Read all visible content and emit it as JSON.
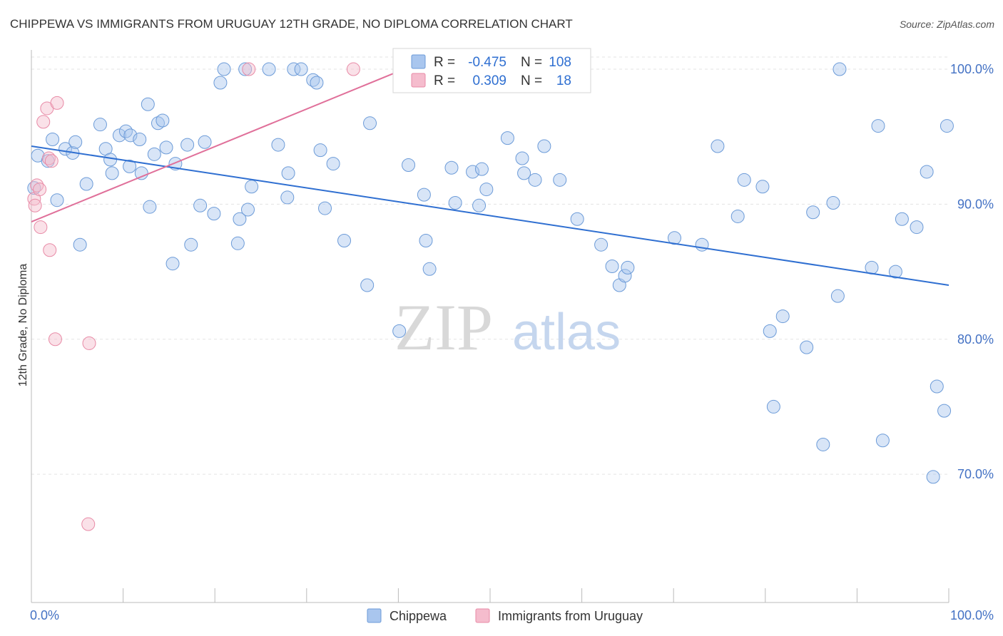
{
  "title": "CHIPPEWA VS IMMIGRANTS FROM URUGUAY 12TH GRADE, NO DIPLOMA CORRELATION CHART",
  "source": "Source: ZipAtlas.com",
  "watermark": {
    "zip": "ZIP",
    "atlas": "atlas"
  },
  "colors": {
    "blue_fill": "#a9c6ee",
    "blue_stroke": "#6c9bd8",
    "blue_line": "#2f6fd1",
    "pink_fill": "#f5bccd",
    "pink_stroke": "#e88aa6",
    "pink_line": "#e0709a",
    "grid": "#e3e3e3",
    "axis": "#bbbbbb",
    "tick_text": "#4472c4"
  },
  "legend": {
    "rows": [
      {
        "r_label": "R =",
        "r_value": "-0.475",
        "n_label": "N =",
        "n_value": "108"
      },
      {
        "r_label": "R =",
        "r_value": "0.309",
        "n_label": "N =",
        "n_value": "18"
      }
    ]
  },
  "bottom_legend": [
    "Chippewa",
    "Immigrants from Uruguay"
  ],
  "chart_data": {
    "type": "scatter",
    "title": "CHIPPEWA VS IMMIGRANTS FROM URUGUAY 12TH GRADE, NO DIPLOMA CORRELATION CHART",
    "xlabel": "",
    "ylabel": "12th Grade, No Diploma",
    "xlim": [
      0,
      100
    ],
    "ylim": [
      60.5,
      100.9
    ],
    "x_tick_labels": [
      "0.0%",
      "100.0%"
    ],
    "y_ticks": [
      70,
      80,
      90,
      100
    ],
    "y_tick_labels": [
      "70.0%",
      "80.0%",
      "90.0%",
      "100.0%"
    ],
    "grid": true,
    "legend_position": "top-center",
    "series": [
      {
        "name": "Chippewa",
        "color": "#a9c6ee",
        "trendline": {
          "x": [
            0,
            100
          ],
          "y": [
            94.3,
            84.0
          ]
        },
        "points": [
          [
            0.3,
            91.2
          ],
          [
            0.7,
            93.6
          ],
          [
            1.8,
            93.2
          ],
          [
            2.3,
            94.8
          ],
          [
            2.8,
            90.3
          ],
          [
            3.7,
            94.1
          ],
          [
            4.5,
            93.8
          ],
          [
            4.8,
            94.6
          ],
          [
            5.3,
            87.0
          ],
          [
            6.0,
            91.5
          ],
          [
            7.5,
            95.9
          ],
          [
            8.1,
            94.1
          ],
          [
            8.8,
            92.3
          ],
          [
            8.6,
            93.3
          ],
          [
            9.6,
            95.1
          ],
          [
            10.3,
            95.4
          ],
          [
            10.8,
            95.1
          ],
          [
            10.7,
            92.8
          ],
          [
            11.8,
            94.8
          ],
          [
            12.0,
            92.3
          ],
          [
            12.7,
            97.4
          ],
          [
            12.9,
            89.8
          ],
          [
            13.4,
            93.7
          ],
          [
            13.8,
            96.0
          ],
          [
            14.3,
            96.2
          ],
          [
            14.7,
            94.2
          ],
          [
            15.4,
            85.6
          ],
          [
            15.7,
            93.0
          ],
          [
            17.0,
            94.4
          ],
          [
            17.4,
            87.0
          ],
          [
            18.4,
            89.9
          ],
          [
            18.9,
            94.6
          ],
          [
            19.9,
            89.3
          ],
          [
            20.6,
            99.0
          ],
          [
            21.0,
            100.0
          ],
          [
            22.5,
            87.1
          ],
          [
            22.7,
            88.9
          ],
          [
            23.3,
            100.0
          ],
          [
            23.6,
            89.6
          ],
          [
            24.0,
            91.3
          ],
          [
            25.9,
            100.0
          ],
          [
            26.9,
            94.4
          ],
          [
            27.9,
            90.5
          ],
          [
            28.0,
            92.3
          ],
          [
            28.6,
            100.0
          ],
          [
            29.4,
            100.0
          ],
          [
            30.7,
            99.2
          ],
          [
            31.1,
            99.0
          ],
          [
            31.5,
            94.0
          ],
          [
            32.0,
            89.7
          ],
          [
            32.9,
            93.0
          ],
          [
            34.1,
            87.3
          ],
          [
            36.6,
            84.0
          ],
          [
            36.9,
            96.0
          ],
          [
            40.1,
            80.6
          ],
          [
            41.1,
            92.9
          ],
          [
            42.8,
            90.7
          ],
          [
            43.0,
            87.3
          ],
          [
            43.4,
            85.2
          ],
          [
            45.8,
            92.7
          ],
          [
            46.2,
            90.1
          ],
          [
            48.1,
            92.4
          ],
          [
            48.8,
            89.9
          ],
          [
            49.1,
            92.6
          ],
          [
            49.6,
            91.1
          ],
          [
            51.9,
            94.9
          ],
          [
            53.5,
            93.4
          ],
          [
            53.7,
            92.3
          ],
          [
            54.9,
            91.8
          ],
          [
            55.9,
            94.3
          ],
          [
            57.6,
            91.8
          ],
          [
            59.5,
            88.9
          ],
          [
            62.1,
            87.0
          ],
          [
            63.3,
            85.4
          ],
          [
            64.1,
            84.0
          ],
          [
            64.7,
            84.7
          ],
          [
            65.0,
            85.3
          ],
          [
            70.1,
            87.5
          ],
          [
            73.1,
            87.0
          ],
          [
            74.8,
            94.3
          ],
          [
            77.0,
            89.1
          ],
          [
            77.7,
            91.8
          ],
          [
            79.7,
            91.3
          ],
          [
            80.5,
            80.6
          ],
          [
            80.9,
            75.0
          ],
          [
            81.9,
            81.7
          ],
          [
            84.5,
            79.4
          ],
          [
            85.2,
            89.4
          ],
          [
            86.3,
            72.2
          ],
          [
            87.4,
            90.1
          ],
          [
            87.9,
            83.2
          ],
          [
            88.1,
            100.0
          ],
          [
            91.6,
            85.3
          ],
          [
            92.3,
            95.8
          ],
          [
            92.8,
            72.5
          ],
          [
            94.2,
            85.0
          ],
          [
            94.9,
            88.9
          ],
          [
            96.5,
            88.3
          ],
          [
            97.6,
            92.4
          ],
          [
            98.3,
            69.8
          ],
          [
            98.7,
            76.5
          ],
          [
            99.5,
            74.7
          ],
          [
            99.8,
            95.8
          ]
        ]
      },
      {
        "name": "Immigrants from Uruguay",
        "color": "#f5bccd",
        "trendline": {
          "x": [
            0,
            40.6
          ],
          "y": [
            88.7,
            100.0
          ]
        },
        "points": [
          [
            0.3,
            90.4
          ],
          [
            0.4,
            89.9
          ],
          [
            0.6,
            91.4
          ],
          [
            0.9,
            91.1
          ],
          [
            1.0,
            88.3
          ],
          [
            1.3,
            96.1
          ],
          [
            1.7,
            97.1
          ],
          [
            1.9,
            93.4
          ],
          [
            2.0,
            86.6
          ],
          [
            2.2,
            93.2
          ],
          [
            2.6,
            80.0
          ],
          [
            2.8,
            97.5
          ],
          [
            6.3,
            79.7
          ],
          [
            6.2,
            66.3
          ],
          [
            23.7,
            100.0
          ],
          [
            35.1,
            100.0
          ]
        ]
      }
    ]
  }
}
